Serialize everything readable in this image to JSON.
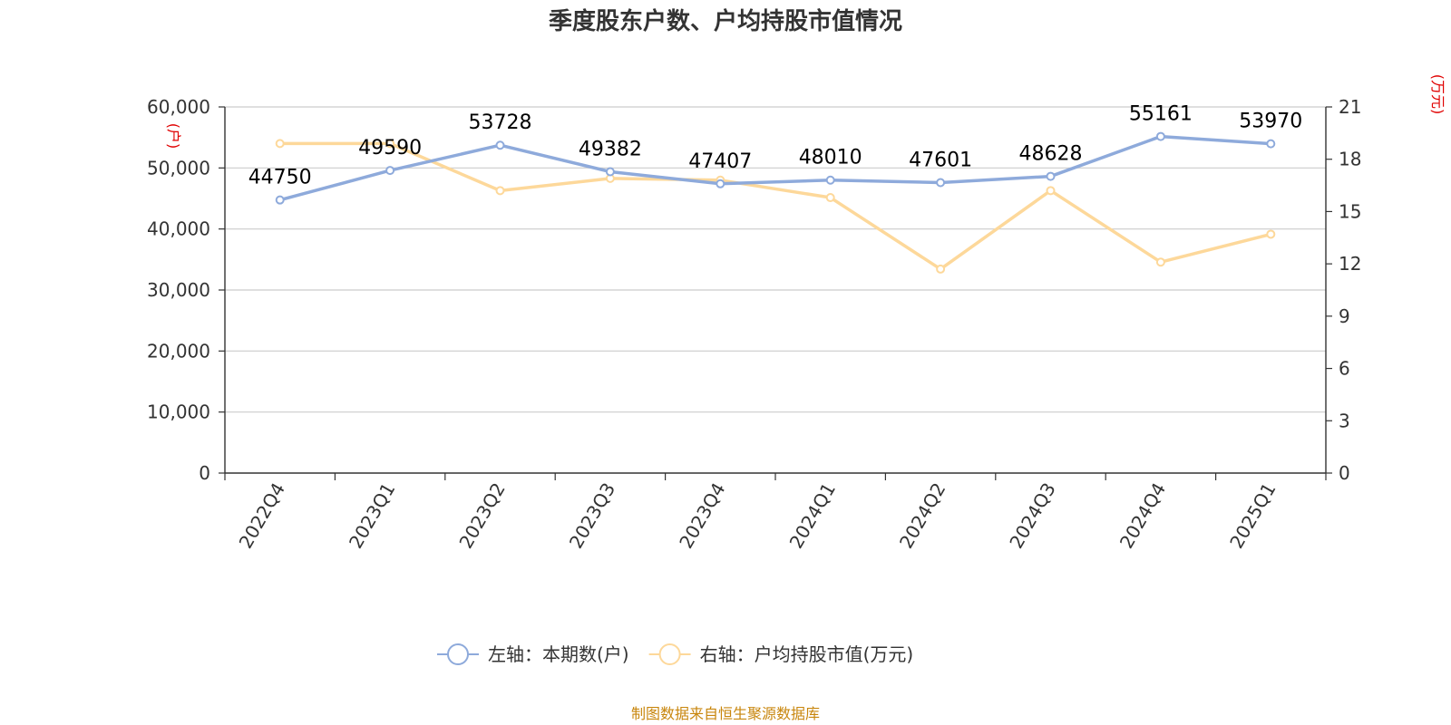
{
  "title": "季度股东户数、户均持股市值情况",
  "source": "制图数据来自恒生聚源数据库",
  "chart_data": {
    "type": "line",
    "title": "季度股东户数、户均持股市值情况",
    "categories": [
      "2022Q4",
      "2023Q1",
      "2023Q2",
      "2023Q3",
      "2023Q4",
      "2024Q1",
      "2024Q2",
      "2024Q3",
      "2024Q4",
      "2025Q1"
    ],
    "left_axis": {
      "unit": "(户)",
      "ylim": [
        0,
        60000
      ],
      "ticks": [
        0,
        10000,
        20000,
        30000,
        40000,
        50000,
        60000
      ],
      "tick_labels": [
        "0",
        "10,000",
        "20,000",
        "30,000",
        "40,000",
        "50,000",
        "60,000"
      ]
    },
    "right_axis": {
      "unit": "(万元)",
      "ylim": [
        0,
        21
      ],
      "ticks": [
        0,
        3,
        6,
        9,
        12,
        15,
        18,
        21
      ],
      "tick_labels": [
        "0",
        "3",
        "6",
        "9",
        "12",
        "15",
        "18",
        "21"
      ]
    },
    "series": [
      {
        "name": "左轴：本期数(户)",
        "axis": "left",
        "color": "#8eaadb",
        "show_labels": true,
        "values": [
          44750,
          49590,
          53728,
          49382,
          47407,
          48010,
          47601,
          48628,
          55161,
          53970
        ],
        "labels": [
          "44750",
          "49590",
          "53728",
          "49382",
          "47407",
          "48010",
          "47601",
          "48628",
          "55161",
          "53970"
        ]
      },
      {
        "name": "右轴：户均持股市值(万元)",
        "axis": "right",
        "color": "#fdd89a",
        "show_labels": false,
        "values": [
          18.9,
          18.9,
          16.2,
          16.9,
          16.8,
          15.8,
          11.7,
          16.2,
          12.1,
          13.7
        ]
      }
    ],
    "grid": true,
    "legend_position": "bottom"
  }
}
